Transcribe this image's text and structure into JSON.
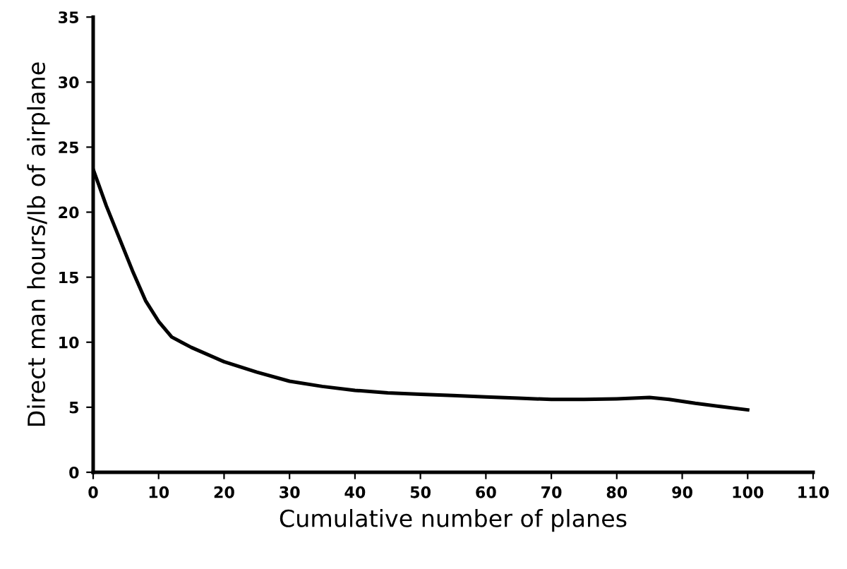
{
  "chart_data": {
    "type": "line",
    "xlabel": "Cumulative number of planes",
    "ylabel": "Direct man hours/lb of airplane",
    "x": [
      0,
      2,
      4,
      6,
      8,
      10,
      12,
      15,
      20,
      25,
      30,
      35,
      40,
      45,
      50,
      55,
      60,
      65,
      70,
      75,
      80,
      85,
      88,
      92,
      96,
      100
    ],
    "series": [
      {
        "color": "#000000",
        "values": [
          23.3,
          20.5,
          18,
          15.5,
          13.2,
          11.6,
          10.4,
          9.6,
          8.5,
          7.7,
          7.0,
          6.6,
          6.3,
          6.1,
          6.0,
          5.9,
          5.8,
          5.7,
          5.6,
          5.6,
          5.65,
          5.75,
          5.6,
          5.3,
          5.05,
          4.8
        ]
      }
    ],
    "xlim": [
      0,
      110
    ],
    "ylim": [
      0,
      35
    ],
    "xticks": [
      0,
      10,
      20,
      30,
      40,
      50,
      60,
      70,
      80,
      90,
      100,
      110
    ],
    "yticks": [
      0,
      5,
      10,
      15,
      20,
      25,
      30,
      35
    ],
    "grid": false,
    "legend": false,
    "marker": "none",
    "line_style": "solid"
  }
}
